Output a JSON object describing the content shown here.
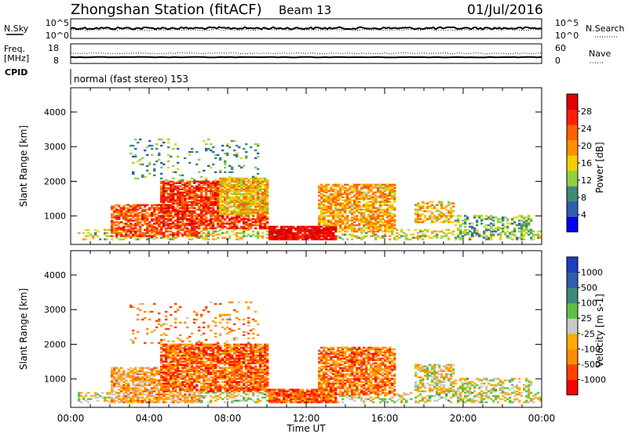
{
  "header": {
    "title": "Zhongshan Station (fitACF)",
    "beam": "Beam 13",
    "date": "01/Jul/2016"
  },
  "noise_panel": {
    "left_label": "N.Sky",
    "left_ticks": [
      "10^5",
      "10^0"
    ],
    "right_ticks": [
      "10^5",
      "10^0"
    ],
    "right_label": "N.Search"
  },
  "freq_panel": {
    "left_label_1": "Freq.",
    "left_label_2": "[MHz]",
    "left_ticks": [
      "18",
      "8"
    ],
    "right_ticks": [
      "60",
      "0"
    ],
    "right_label": "Nave",
    "cpid_label": "CPID"
  },
  "cpid_text": "normal (fast stereo) 153",
  "colors": {
    "power_scale": [
      "#0000ff",
      "#2e5fb0",
      "#3c8a78",
      "#90d040",
      "#f0d000",
      "#ff9000",
      "#ff6000",
      "#ff2000",
      "#e00000"
    ],
    "velocity_scale": [
      "#ff0000",
      "#ff4000",
      "#ff8c00",
      "#ffaa00",
      "#c8c8c8",
      "#60c040",
      "#3c8a78",
      "#2e5fb0",
      "#1f3fc0"
    ]
  },
  "chart_data": [
    {
      "type": "heatmap",
      "title": "",
      "xlabel": "",
      "ylabel": "Slant Range [km]",
      "x_ticks": [
        "00:00",
        "04:00",
        "08:00",
        "12:00",
        "16:00",
        "20:00",
        "00:00"
      ],
      "y_ticks": [
        "1000",
        "2000",
        "3000",
        "4000"
      ],
      "ylim": [
        180,
        4700
      ],
      "xlim_hours": [
        0,
        24
      ],
      "colorbar": {
        "label": "Power [dB]",
        "ticks": [
          "4",
          "8",
          "12",
          "16",
          "20",
          "24",
          "28"
        ],
        "range": [
          0,
          30
        ]
      },
      "echo_regions": [
        {
          "t0": 0.3,
          "t1": 24,
          "r0": 300,
          "r1": 600,
          "weight": 0.35,
          "level": 0.45
        },
        {
          "t0": 2.0,
          "t1": 6.5,
          "r0": 400,
          "r1": 1300,
          "weight": 0.7,
          "level": 0.75
        },
        {
          "t0": 4.5,
          "t1": 10,
          "r0": 600,
          "r1": 2000,
          "weight": 0.8,
          "level": 0.8
        },
        {
          "t0": 7.5,
          "t1": 10,
          "r0": 1000,
          "r1": 2100,
          "weight": 0.85,
          "level": 0.55
        },
        {
          "t0": 10,
          "t1": 13.5,
          "r0": 300,
          "r1": 700,
          "weight": 0.9,
          "level": 0.95
        },
        {
          "t0": 12.5,
          "t1": 16.5,
          "r0": 500,
          "r1": 1900,
          "weight": 0.7,
          "level": 0.6
        },
        {
          "t0": 17.5,
          "t1": 19.5,
          "r0": 800,
          "r1": 1400,
          "weight": 0.55,
          "level": 0.55
        },
        {
          "t0": 19.5,
          "t1": 23.5,
          "r0": 300,
          "r1": 1000,
          "weight": 0.45,
          "level": 0.35
        },
        {
          "t0": 3.0,
          "t1": 9.5,
          "r0": 2000,
          "r1": 3200,
          "weight": 0.12,
          "level": 0.3
        }
      ]
    },
    {
      "type": "heatmap",
      "title": "",
      "xlabel": "Time UT",
      "ylabel": "Slant Range [km]",
      "x_ticks": [
        "00:00",
        "04:00",
        "08:00",
        "12:00",
        "16:00",
        "20:00",
        "00:00"
      ],
      "y_ticks": [
        "1000",
        "2000",
        "3000",
        "4000"
      ],
      "ylim": [
        180,
        4700
      ],
      "xlim_hours": [
        0,
        24
      ],
      "colorbar": {
        "label": "Velocity [m s-1]",
        "ticks": [
          "-1000",
          "-500",
          "-100",
          "-25",
          "25",
          "100",
          "500",
          "1000"
        ],
        "range": [
          -1200,
          1200
        ]
      },
      "echo_regions": [
        {
          "t0": 0.3,
          "t1": 24,
          "r0": 300,
          "r1": 600,
          "weight": 0.35,
          "level": 0.5
        },
        {
          "t0": 2.0,
          "t1": 6.5,
          "r0": 300,
          "r1": 1300,
          "weight": 0.7,
          "level": 0.35
        },
        {
          "t0": 4.5,
          "t1": 10,
          "r0": 600,
          "r1": 2000,
          "weight": 0.8,
          "level": 0.22
        },
        {
          "t0": 10,
          "t1": 13.5,
          "r0": 300,
          "r1": 700,
          "weight": 0.9,
          "level": 0.2
        },
        {
          "t0": 12.5,
          "t1": 16.5,
          "r0": 500,
          "r1": 1900,
          "weight": 0.7,
          "level": 0.25
        },
        {
          "t0": 17.5,
          "t1": 19.5,
          "r0": 600,
          "r1": 1400,
          "weight": 0.55,
          "level": 0.45
        },
        {
          "t0": 19.5,
          "t1": 23.5,
          "r0": 300,
          "r1": 1000,
          "weight": 0.45,
          "level": 0.5
        },
        {
          "t0": 3.0,
          "t1": 9.5,
          "r0": 2000,
          "r1": 3200,
          "weight": 0.12,
          "level": 0.3
        }
      ]
    }
  ]
}
